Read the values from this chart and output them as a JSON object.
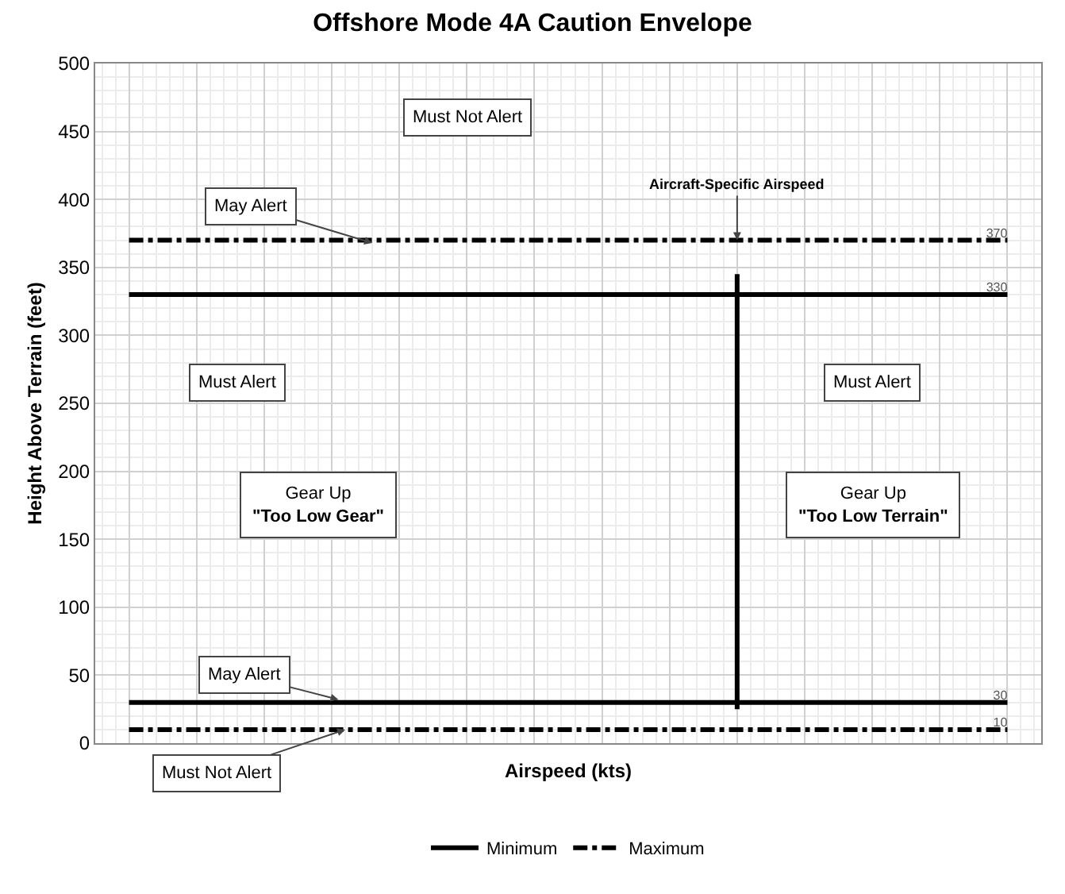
{
  "chart_data": {
    "type": "line",
    "title": "Offshore Mode 4A Caution Envelope",
    "xlabel": "Airspeed (kts)",
    "ylabel": "Height Above Terrain (feet)",
    "categories": [
      null,
      null,
      null,
      null,
      null,
      null,
      null,
      null,
      null,
      null,
      null,
      null,
      null,
      null
    ],
    "series": [
      {
        "name": "Minimum",
        "color": "#000000",
        "line_style": "solid",
        "values": [
          330,
          330,
          330,
          330,
          330,
          330,
          330,
          330,
          330,
          330,
          330,
          330,
          330,
          330
        ],
        "value_labels": [
          null,
          null,
          null,
          null,
          null,
          null,
          null,
          null,
          null,
          null,
          null,
          null,
          null,
          "330"
        ]
      },
      {
        "color": "#000000",
        "line_style": "solid",
        "values": [
          30,
          30,
          30,
          30,
          30,
          30,
          30,
          30,
          30,
          30,
          30,
          30,
          30,
          30
        ],
        "value_labels": [
          null,
          null,
          null,
          null,
          null,
          null,
          null,
          null,
          null,
          null,
          null,
          null,
          null,
          "30"
        ]
      },
      {
        "name": "Maximum",
        "color": "#000000",
        "line_style": "dashed",
        "values": [
          370,
          370,
          370,
          370,
          370,
          370,
          370,
          370,
          370,
          370,
          370,
          370,
          370,
          370
        ],
        "value_labels": [
          null,
          null,
          null,
          null,
          null,
          null,
          null,
          null,
          null,
          null,
          null,
          null,
          null,
          "370"
        ]
      },
      {
        "color": "#000000",
        "line_style": "dashed",
        "values": [
          10,
          10,
          10,
          10,
          10,
          10,
          10,
          10,
          10,
          10,
          10,
          10,
          10,
          10
        ],
        "value_labels": [
          null,
          null,
          null,
          null,
          null,
          null,
          null,
          null,
          null,
          null,
          null,
          null,
          null,
          "10"
        ]
      }
    ],
    "annotations": [
      "Must Not Alert",
      "May Alert",
      "Must Alert",
      "Must Alert",
      "Gear Up\n\"Too Low Gear\"",
      "Gear Up\n\"Too Low Terrain\"",
      "May Alert",
      "Must Not Alert",
      "Aircraft-Specific Airspeed"
    ],
    "ylim": [
      0,
      500
    ],
    "yticks": [
      0,
      50,
      100,
      150,
      200,
      250,
      300,
      350,
      400,
      450,
      500
    ],
    "grid": true,
    "legend": "bottom",
    "marker": "none"
  }
}
